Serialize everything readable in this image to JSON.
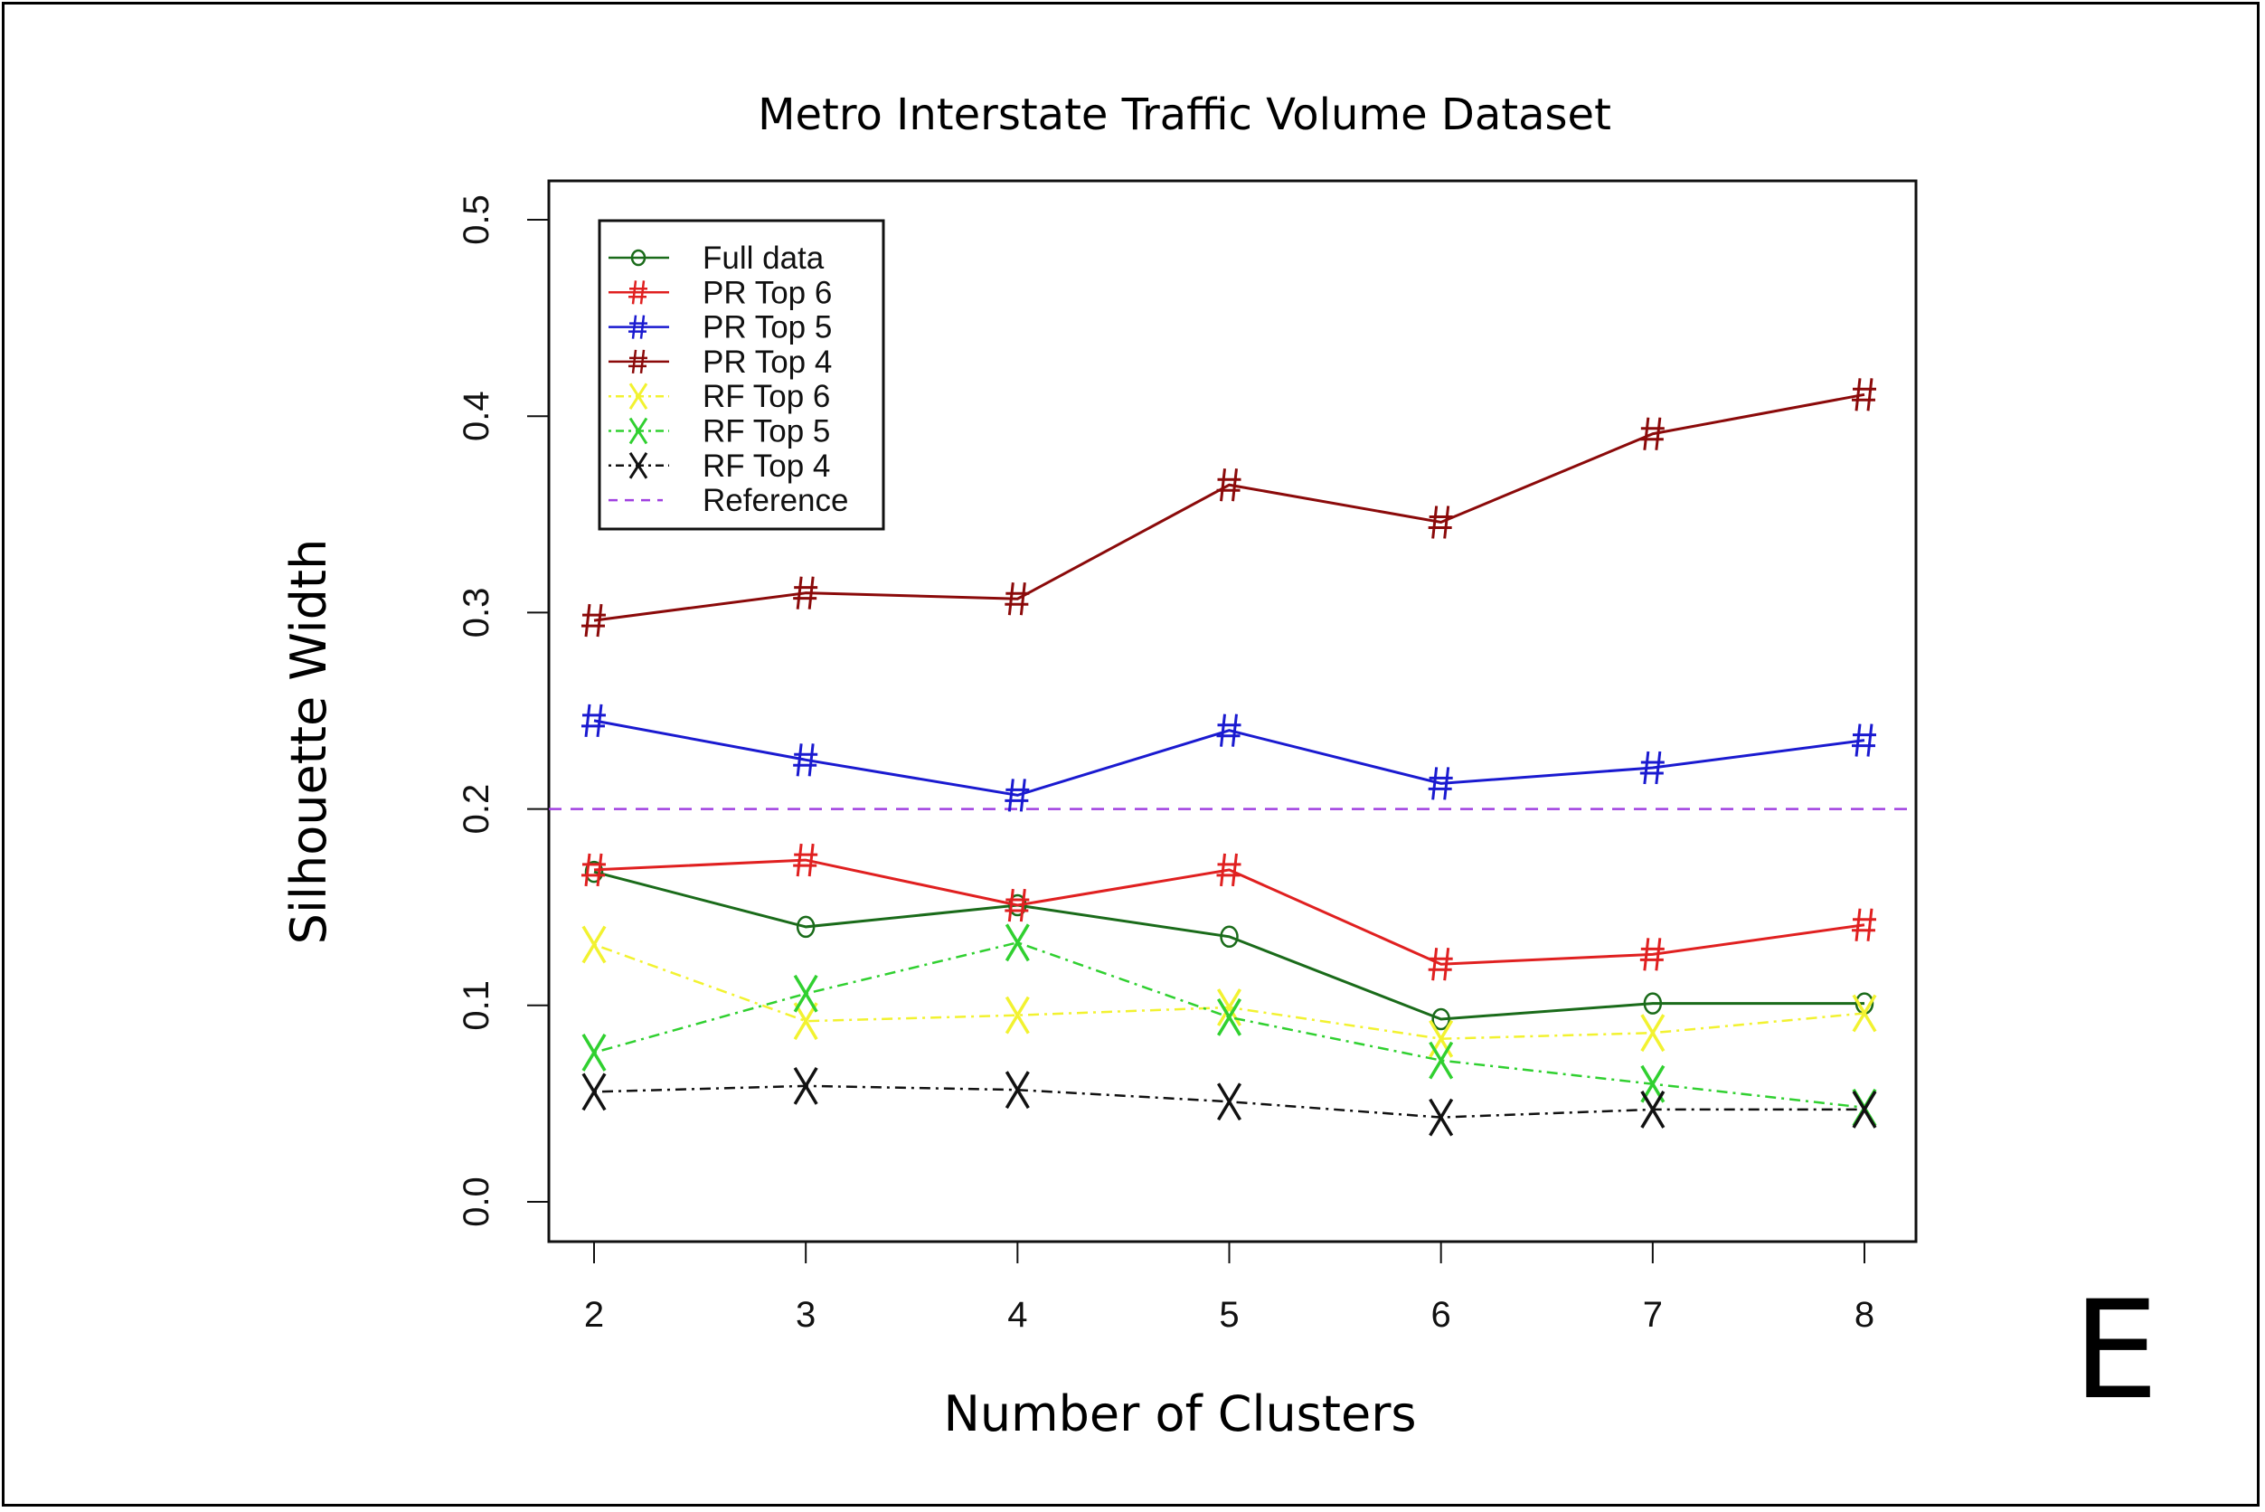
{
  "panel_label": "E",
  "chart_data": {
    "type": "line",
    "title": "Metro Interstate Traffic Volume Dataset",
    "xlabel": "Number of Clusters",
    "ylabel": "Silhouette Width",
    "x": [
      2,
      3,
      4,
      5,
      6,
      7,
      8
    ],
    "xticks": [
      "2",
      "3",
      "4",
      "5",
      "6",
      "7",
      "8"
    ],
    "yticks": [
      "0.0",
      "0.1",
      "0.2",
      "0.3",
      "0.4",
      "0.5"
    ],
    "xlim": [
      2,
      8
    ],
    "ylim": [
      0,
      0.5
    ],
    "grid": false,
    "legend_position": "top-left",
    "series": [
      {
        "name": "Full data",
        "color": "#1a6b1a",
        "marker": "o",
        "dash": "solid",
        "values": [
          0.168,
          0.14,
          0.151,
          0.135,
          0.093,
          0.101,
          0.101
        ]
      },
      {
        "name": "PR Top 6",
        "color": "#e02020",
        "marker": "#",
        "dash": "solid",
        "values": [
          0.169,
          0.174,
          0.151,
          0.169,
          0.121,
          0.126,
          0.141
        ]
      },
      {
        "name": "PR Top 5",
        "color": "#1a1ad0",
        "marker": "#",
        "dash": "solid",
        "values": [
          0.245,
          0.225,
          0.207,
          0.24,
          0.213,
          0.221,
          0.235
        ]
      },
      {
        "name": "PR Top 4",
        "color": "#8b0a0a",
        "marker": "#",
        "dash": "solid",
        "values": [
          0.296,
          0.31,
          0.307,
          0.365,
          0.346,
          0.391,
          0.411
        ]
      },
      {
        "name": "RF Top 6",
        "color": "#f2f230",
        "marker": "X",
        "dash": "dotdash",
        "values": [
          0.131,
          0.092,
          0.095,
          0.099,
          0.083,
          0.086,
          0.096
        ]
      },
      {
        "name": "RF Top 5",
        "color": "#30d030",
        "marker": "X",
        "dash": "dotdash",
        "values": [
          0.076,
          0.106,
          0.132,
          0.094,
          0.072,
          0.06,
          0.048
        ]
      },
      {
        "name": "RF Top 4",
        "color": "#111111",
        "marker": "X",
        "dash": "dotdash",
        "values": [
          0.056,
          0.059,
          0.057,
          0.051,
          0.043,
          0.047,
          0.047
        ]
      }
    ],
    "reference": {
      "name": "Reference",
      "color": "#a040e0",
      "value": 0.2,
      "dash": "dashed"
    }
  }
}
